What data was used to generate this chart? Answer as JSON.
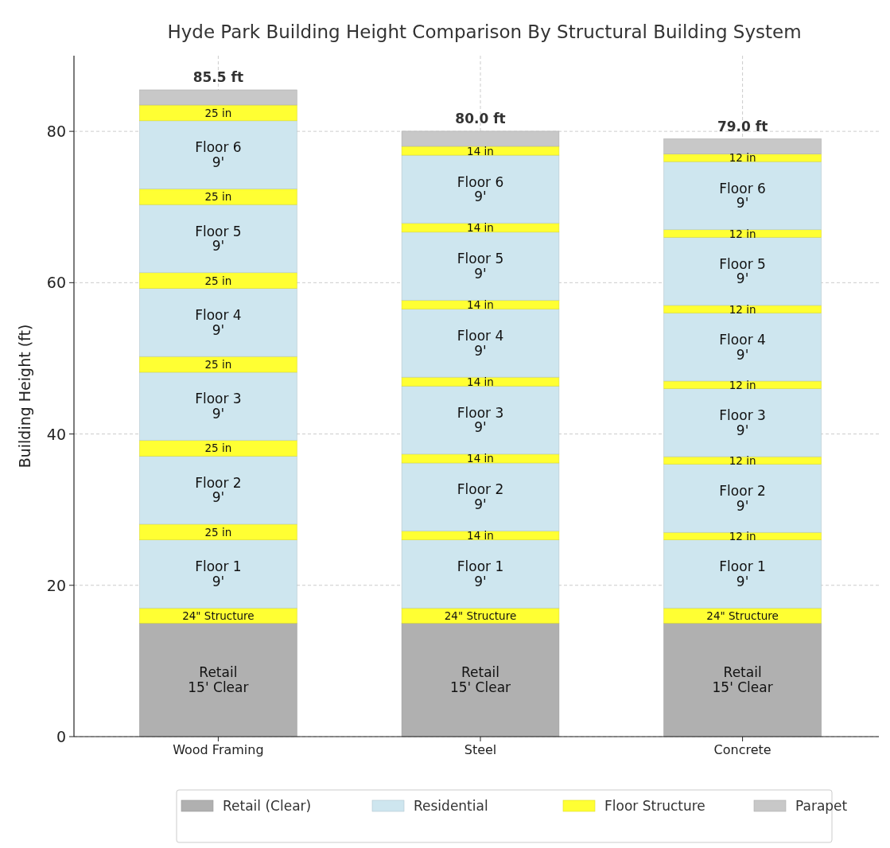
{
  "chart_data": {
    "type": "bar",
    "stacked": true,
    "title": "Hyde Park Building Height Comparison By Structural Building System",
    "ylabel": "Building Height (ft)",
    "categories": [
      "Wood Framing",
      "Steel",
      "Concrete"
    ],
    "ylim": [
      0,
      90
    ],
    "yticks": [
      0,
      20,
      40,
      60,
      80
    ],
    "grid": true,
    "legend": "bottom",
    "totals": [
      "85.5 ft",
      "80.0 ft",
      "79.0 ft"
    ],
    "series": [
      {
        "name": "Retail (Clear)",
        "color": "#b0b0b0",
        "values": [
          15,
          15,
          15
        ],
        "value_labels": [
          "Retail\n15' Clear",
          "Retail\n15' Clear",
          "Retail\n15' Clear"
        ]
      },
      {
        "name": "Floor Structure",
        "color": "#ffff33",
        "values": [
          2,
          2,
          2
        ]
      },
      {
        "name": "Residential",
        "color": "#cee6ef",
        "values": [
          9,
          9,
          9
        ],
        "value_labels": [
          "Floor 1\n9'",
          "Floor 1\n9'",
          "Floor 1\n9'"
        ]
      },
      {
        "color": "#ffff33",
        "values": [
          2.08,
          1.17,
          1
        ]
      },
      {
        "color": "#cee6ef",
        "values": [
          9,
          9,
          9
        ],
        "value_labels": [
          "Floor 2\n9'",
          "Floor 2\n9'",
          "Floor 2\n9'"
        ]
      },
      {
        "color": "#ffff33",
        "values": [
          2.08,
          1.17,
          1
        ]
      },
      {
        "color": "#cee6ef",
        "values": [
          9,
          9,
          9
        ],
        "value_labels": [
          "Floor 3\n9'",
          "Floor 3\n9'",
          "Floor 3\n9'"
        ]
      },
      {
        "color": "#ffff33",
        "values": [
          2.08,
          1.17,
          1
        ]
      },
      {
        "color": "#cee6ef",
        "values": [
          9,
          9,
          9
        ],
        "value_labels": [
          "Floor 4\n9'",
          "Floor 4\n9'",
          "Floor 4\n9'"
        ]
      },
      {
        "color": "#ffff33",
        "values": [
          2.08,
          1.17,
          1
        ]
      },
      {
        "color": "#cee6ef",
        "values": [
          9,
          9,
          9
        ],
        "value_labels": [
          "Floor 5\n9'",
          "Floor 5\n9'",
          "Floor 5\n9'"
        ]
      },
      {
        "color": "#ffff33",
        "values": [
          2.08,
          1.17,
          1
        ]
      },
      {
        "color": "#cee6ef",
        "values": [
          9,
          9,
          9
        ],
        "value_labels": [
          "Floor 6\n9'",
          "Floor 6\n9'",
          "Floor 6\n9'"
        ]
      },
      {
        "color": "#ffff33",
        "values": [
          2.08,
          1.17,
          1
        ]
      },
      {
        "name": "Parapet",
        "color": "#c8c8c8",
        "values": [
          2,
          2,
          2
        ]
      }
    ],
    "annotations": [
      {
        "text": "24\" Structure",
        "x": "Wood Framing",
        "y": 17
      },
      {
        "text": "24\" Structure",
        "x": "Steel",
        "y": 17
      },
      {
        "text": "24\" Structure",
        "x": "Concrete",
        "y": 17
      },
      {
        "text": "25 in",
        "x": "Wood Framing",
        "y": 28.08
      },
      {
        "text": "25 in",
        "x": "Wood Framing",
        "y": 39.16
      },
      {
        "text": "25 in",
        "x": "Wood Framing",
        "y": 50.24
      },
      {
        "text": "25 in",
        "x": "Wood Framing",
        "y": 61.32
      },
      {
        "text": "25 in",
        "x": "Wood Framing",
        "y": 72.4
      },
      {
        "text": "25 in",
        "x": "Wood Framing",
        "y": 83.48
      },
      {
        "text": "14 in",
        "x": "Steel",
        "y": 27.17
      },
      {
        "text": "14 in",
        "x": "Steel",
        "y": 37.34
      },
      {
        "text": "14 in",
        "x": "Steel",
        "y": 47.51
      },
      {
        "text": "14 in",
        "x": "Steel",
        "y": 57.68
      },
      {
        "text": "14 in",
        "x": "Steel",
        "y": 67.85
      },
      {
        "text": "14 in",
        "x": "Steel",
        "y": 78.02
      },
      {
        "text": "12 in",
        "x": "Concrete",
        "y": 27
      },
      {
        "text": "12 in",
        "x": "Concrete",
        "y": 37
      },
      {
        "text": "12 in",
        "x": "Concrete",
        "y": 47
      },
      {
        "text": "12 in",
        "x": "Concrete",
        "y": 57
      },
      {
        "text": "12 in",
        "x": "Concrete",
        "y": 67
      },
      {
        "text": "12 in",
        "x": "Concrete",
        "y": 77
      }
    ]
  }
}
